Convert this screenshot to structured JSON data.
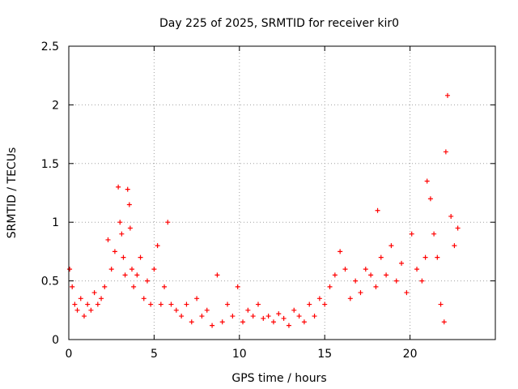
{
  "chart_data": {
    "type": "scatter",
    "title": "Day 225 of 2025, SRMTID for receiver kir0",
    "xlabel": "GPS time / hours",
    "ylabel": "SRMTID / TECUs",
    "xlim": [
      0,
      25
    ],
    "ylim": [
      0,
      2.5
    ],
    "xticks": [
      0,
      5,
      10,
      15,
      20
    ],
    "yticks": [
      0,
      0.5,
      1,
      1.5,
      2,
      2.5
    ],
    "xtick_labels": [
      "0",
      "5",
      "10",
      "15",
      "20"
    ],
    "ytick_labels": [
      "0",
      "0.5",
      "1",
      "1.5",
      "2",
      "2.5"
    ],
    "grid": true,
    "marker": "+",
    "series": [
      {
        "name": "SRMTID",
        "color": "#ff0000",
        "x": [
          0.05,
          0.2,
          0.35,
          0.5,
          0.7,
          0.9,
          1.1,
          1.3,
          1.5,
          1.7,
          1.9,
          2.1,
          2.3,
          2.5,
          2.7,
          2.9,
          3.0,
          3.1,
          3.2,
          3.3,
          3.45,
          3.55,
          3.6,
          3.7,
          3.8,
          4.0,
          4.2,
          4.4,
          4.6,
          4.8,
          5.0,
          5.2,
          5.4,
          5.6,
          5.8,
          6.0,
          6.3,
          6.6,
          6.9,
          7.2,
          7.5,
          7.8,
          8.1,
          8.4,
          8.7,
          9.0,
          9.3,
          9.6,
          9.9,
          10.2,
          10.5,
          10.8,
          11.1,
          11.4,
          11.7,
          12.0,
          12.3,
          12.6,
          12.9,
          13.2,
          13.5,
          13.8,
          14.1,
          14.4,
          14.7,
          15.0,
          15.3,
          15.6,
          15.9,
          16.2,
          16.5,
          16.8,
          17.1,
          17.4,
          17.7,
          18.0,
          18.1,
          18.3,
          18.6,
          18.9,
          19.2,
          19.5,
          19.8,
          20.1,
          20.4,
          20.7,
          20.9,
          21.0,
          21.2,
          21.4,
          21.6,
          21.8,
          22.0,
          22.1,
          22.2,
          22.4,
          22.6,
          22.8
        ],
        "values": [
          0.6,
          0.45,
          0.3,
          0.25,
          0.35,
          0.2,
          0.3,
          0.25,
          0.4,
          0.3,
          0.35,
          0.45,
          0.85,
          0.6,
          0.75,
          1.3,
          1.0,
          0.9,
          0.7,
          0.55,
          1.28,
          1.15,
          0.95,
          0.6,
          0.45,
          0.55,
          0.7,
          0.35,
          0.5,
          0.3,
          0.6,
          0.8,
          0.3,
          0.45,
          1.0,
          0.3,
          0.25,
          0.2,
          0.3,
          0.15,
          0.35,
          0.2,
          0.25,
          0.12,
          0.55,
          0.15,
          0.3,
          0.2,
          0.45,
          0.15,
          0.25,
          0.2,
          0.3,
          0.18,
          0.2,
          0.15,
          0.22,
          0.18,
          0.12,
          0.25,
          0.2,
          0.15,
          0.3,
          0.2,
          0.35,
          0.3,
          0.45,
          0.55,
          0.75,
          0.6,
          0.35,
          0.5,
          0.4,
          0.6,
          0.55,
          0.45,
          1.1,
          0.7,
          0.55,
          0.8,
          0.5,
          0.65,
          0.4,
          0.9,
          0.6,
          0.5,
          0.7,
          1.35,
          1.2,
          0.9,
          0.7,
          0.3,
          0.15,
          1.6,
          2.08,
          1.05,
          0.8,
          0.95
        ]
      }
    ]
  }
}
